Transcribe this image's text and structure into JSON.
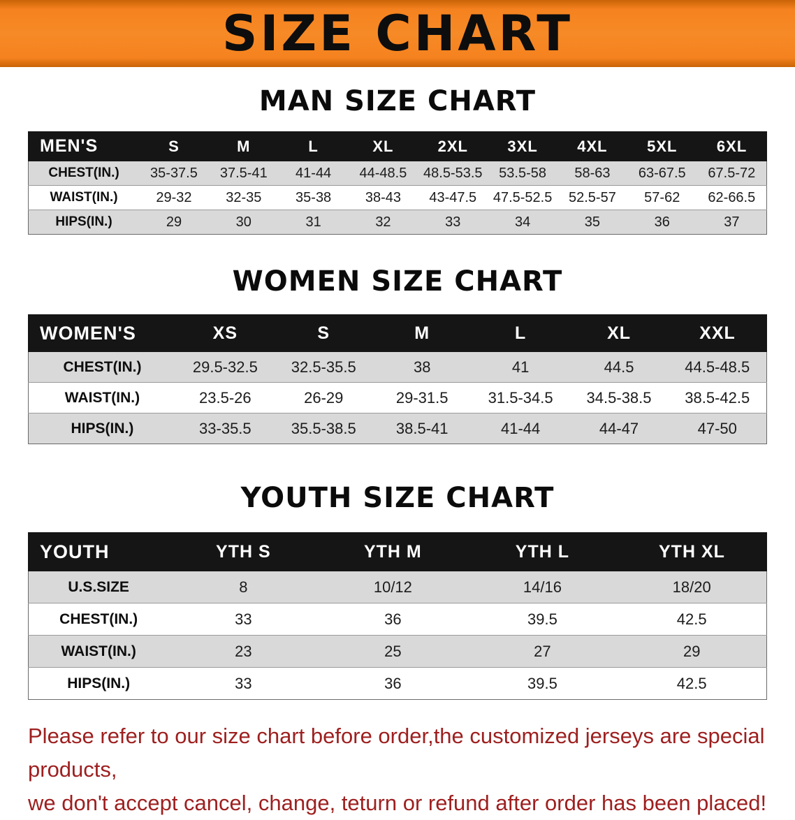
{
  "banner": {
    "title": "SIZE CHART"
  },
  "colors": {
    "banner_bg": "#f5821f",
    "banner_text": "#0d0d0d",
    "table_header_bg": "#151515",
    "table_header_text": "#ffffff",
    "row_shade": "#d9d9d9",
    "footer_text": "#9e1f1f"
  },
  "chart_data": [
    {
      "type": "table",
      "title": "MAN SIZE CHART",
      "columns": [
        "MEN'S",
        "S",
        "M",
        "L",
        "XL",
        "2XL",
        "3XL",
        "4XL",
        "5XL",
        "6XL"
      ],
      "rows": [
        [
          "CHEST(IN.)",
          "35-37.5",
          "37.5-41",
          "41-44",
          "44-48.5",
          "48.5-53.5",
          "53.5-58",
          "58-63",
          "63-67.5",
          "67.5-72"
        ],
        [
          "WAIST(IN.)",
          "29-32",
          "32-35",
          "35-38",
          "38-43",
          "43-47.5",
          "47.5-52.5",
          "52.5-57",
          "57-62",
          "62-66.5"
        ],
        [
          "HIPS(IN.)",
          "29",
          "30",
          "31",
          "32",
          "33",
          "34",
          "35",
          "36",
          "37"
        ]
      ]
    },
    {
      "type": "table",
      "title": "WOMEN SIZE CHART",
      "columns": [
        "WOMEN'S",
        "XS",
        "S",
        "M",
        "L",
        "XL",
        "XXL"
      ],
      "rows": [
        [
          "CHEST(IN.)",
          "29.5-32.5",
          "32.5-35.5",
          "38",
          "41",
          "44.5",
          "44.5-48.5"
        ],
        [
          "WAIST(IN.)",
          "23.5-26",
          "26-29",
          "29-31.5",
          "31.5-34.5",
          "34.5-38.5",
          "38.5-42.5"
        ],
        [
          "HIPS(IN.)",
          "33-35.5",
          "35.5-38.5",
          "38.5-41",
          "41-44",
          "44-47",
          "47-50"
        ]
      ]
    },
    {
      "type": "table",
      "title": "YOUTH SIZE CHART",
      "columns": [
        "YOUTH",
        "YTH S",
        "YTH M",
        "YTH L",
        "YTH XL"
      ],
      "rows": [
        [
          "U.S.SIZE",
          "8",
          "10/12",
          "14/16",
          "18/20"
        ],
        [
          "CHEST(IN.)",
          "33",
          "36",
          "39.5",
          "42.5"
        ],
        [
          "WAIST(IN.)",
          "23",
          "25",
          "27",
          "29"
        ],
        [
          "HIPS(IN.)",
          "33",
          "36",
          "39.5",
          "42.5"
        ]
      ]
    }
  ],
  "footer": {
    "line1": "Please refer to our size chart before order,the customized jerseys are special products,",
    "line2": "we don't accept cancel, change, teturn or refund after order has been placed!"
  }
}
